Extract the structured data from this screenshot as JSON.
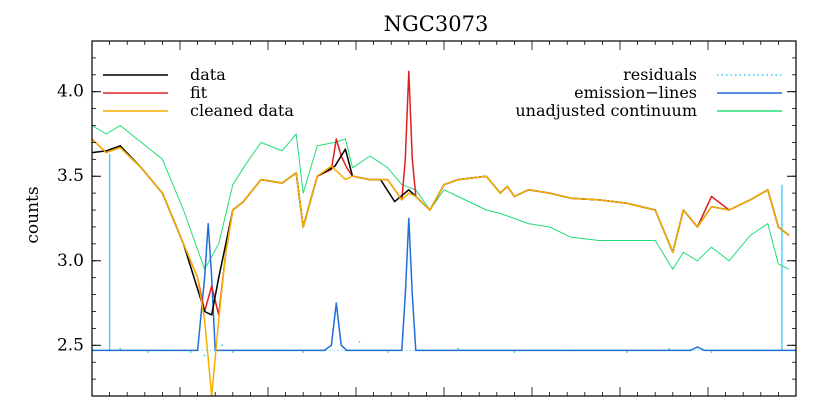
{
  "chart_data": {
    "type": "line",
    "title": "NGC3073",
    "xlabel": "",
    "ylabel": "counts",
    "ylim": [
      2.2,
      4.3
    ],
    "xlim": [
      0,
      1000
    ],
    "y_ticks": [
      2.5,
      3.0,
      3.5,
      4.0
    ],
    "y_tick_labels": [
      "2.5",
      "3.0",
      "3.5",
      "4.0"
    ],
    "x_ticks_major_count": 8,
    "grid": false,
    "legend_left": [
      {
        "name": "data",
        "color": "#000000",
        "style": "solid"
      },
      {
        "name": "fit",
        "color": "#e02020",
        "style": "solid"
      },
      {
        "name": "cleaned data",
        "color": "#f5b000",
        "style": "solid"
      }
    ],
    "legend_right": [
      {
        "name": "residuals",
        "color": "#33ccff",
        "style": "dotted"
      },
      {
        "name": "emission−lines",
        "color": "#1f6fd8",
        "style": "solid"
      },
      {
        "name": "unadjusted continuum",
        "color": "#22dd77",
        "style": "solid"
      }
    ],
    "series": [
      {
        "name": "data",
        "color": "#000000",
        "x": [
          0,
          20,
          40,
          70,
          100,
          130,
          160,
          170,
          180,
          190,
          200,
          215,
          240,
          270,
          290,
          300,
          320,
          345,
          360,
          370,
          395,
          410,
          430,
          450,
          460,
          480,
          500,
          520,
          560,
          580,
          590,
          600,
          620,
          650,
          680,
          720,
          760,
          800,
          825,
          840,
          860,
          880,
          905,
          935,
          960,
          975,
          990
        ],
        "values": [
          3.64,
          3.65,
          3.68,
          3.55,
          3.4,
          3.1,
          2.7,
          2.68,
          2.9,
          3.1,
          3.3,
          3.35,
          3.48,
          3.46,
          3.52,
          3.2,
          3.5,
          3.56,
          3.66,
          3.5,
          3.48,
          3.48,
          3.35,
          3.42,
          3.38,
          3.3,
          3.45,
          3.48,
          3.5,
          3.4,
          3.44,
          3.38,
          3.42,
          3.4,
          3.37,
          3.36,
          3.34,
          3.3,
          3.05,
          3.3,
          3.2,
          3.32,
          3.3,
          3.36,
          3.42,
          3.2,
          3.15
        ]
      },
      {
        "name": "fit",
        "color": "#e02020",
        "x": [
          0,
          20,
          40,
          70,
          100,
          130,
          150,
          160,
          170,
          180,
          190,
          200,
          215,
          240,
          270,
          290,
          300,
          320,
          340,
          347,
          354,
          362,
          370,
          395,
          420,
          440,
          445,
          450,
          455,
          460,
          480,
          500,
          520,
          560,
          580,
          590,
          600,
          620,
          650,
          680,
          720,
          760,
          800,
          825,
          840,
          860,
          880,
          905,
          935,
          960,
          975,
          990
        ],
        "values": [
          3.72,
          3.64,
          3.67,
          3.55,
          3.4,
          3.1,
          2.9,
          2.7,
          2.85,
          2.68,
          3.05,
          3.3,
          3.35,
          3.48,
          3.46,
          3.52,
          3.2,
          3.5,
          3.54,
          3.72,
          3.62,
          3.55,
          3.5,
          3.48,
          3.48,
          3.36,
          3.6,
          4.12,
          3.6,
          3.38,
          3.3,
          3.45,
          3.48,
          3.5,
          3.4,
          3.44,
          3.38,
          3.42,
          3.4,
          3.37,
          3.36,
          3.34,
          3.3,
          3.05,
          3.3,
          3.2,
          3.38,
          3.3,
          3.36,
          3.42,
          3.2,
          3.15
        ]
      },
      {
        "name": "cleaned data",
        "color": "#f5b000",
        "x": [
          0,
          20,
          40,
          70,
          100,
          130,
          150,
          160,
          170,
          180,
          190,
          200,
          215,
          240,
          270,
          290,
          300,
          320,
          340,
          360,
          370,
          395,
          420,
          440,
          450,
          460,
          480,
          500,
          520,
          560,
          580,
          590,
          600,
          620,
          650,
          680,
          720,
          760,
          800,
          825,
          840,
          860,
          880,
          905,
          935,
          960,
          975,
          990
        ],
        "values": [
          3.72,
          3.64,
          3.67,
          3.55,
          3.4,
          3.1,
          2.9,
          2.65,
          2.2,
          2.65,
          3.05,
          3.3,
          3.35,
          3.48,
          3.46,
          3.52,
          3.2,
          3.5,
          3.56,
          3.48,
          3.5,
          3.48,
          3.48,
          3.36,
          3.4,
          3.38,
          3.3,
          3.45,
          3.48,
          3.5,
          3.4,
          3.44,
          3.38,
          3.42,
          3.4,
          3.37,
          3.36,
          3.34,
          3.3,
          3.05,
          3.3,
          3.2,
          3.32,
          3.3,
          3.36,
          3.42,
          3.2,
          3.15
        ]
      },
      {
        "name": "unadjusted continuum",
        "color": "#22dd77",
        "x": [
          0,
          20,
          40,
          70,
          100,
          130,
          160,
          180,
          200,
          215,
          240,
          270,
          290,
          300,
          320,
          345,
          360,
          370,
          395,
          420,
          440,
          460,
          480,
          500,
          520,
          560,
          580,
          600,
          620,
          650,
          680,
          720,
          760,
          800,
          825,
          840,
          860,
          880,
          905,
          935,
          960,
          975,
          990
        ],
        "values": [
          3.8,
          3.75,
          3.8,
          3.7,
          3.6,
          3.3,
          2.95,
          3.1,
          3.45,
          3.55,
          3.7,
          3.65,
          3.75,
          3.4,
          3.68,
          3.7,
          3.72,
          3.55,
          3.62,
          3.55,
          3.45,
          3.42,
          3.3,
          3.42,
          3.38,
          3.3,
          3.28,
          3.25,
          3.22,
          3.2,
          3.14,
          3.12,
          3.12,
          3.12,
          2.95,
          3.05,
          3.0,
          3.08,
          3.0,
          3.15,
          3.22,
          2.98,
          2.95
        ]
      },
      {
        "name": "emission−lines",
        "color": "#1f6fd8",
        "x": [
          0,
          130,
          135,
          150,
          160,
          165,
          170,
          175,
          180,
          190,
          210,
          330,
          340,
          347,
          354,
          362,
          440,
          445,
          450,
          455,
          460,
          850,
          860,
          870,
          1000
        ],
        "values": [
          2.47,
          2.47,
          2.47,
          2.47,
          2.9,
          3.22,
          2.9,
          2.47,
          2.47,
          2.47,
          2.47,
          2.47,
          2.5,
          2.75,
          2.5,
          2.47,
          2.47,
          2.8,
          3.25,
          2.8,
          2.47,
          2.47,
          2.49,
          2.47,
          2.47
        ]
      },
      {
        "name": "residuals",
        "color": "#33ccff",
        "x": [
          25,
          40,
          80,
          100,
          140,
          160,
          185,
          200,
          260,
          300,
          360,
          380,
          420,
          470,
          520,
          600,
          680,
          760,
          820,
          880,
          940,
          975
        ],
        "values": [
          2.47,
          2.48,
          2.46,
          2.47,
          2.46,
          2.44,
          2.5,
          2.46,
          2.47,
          2.46,
          2.47,
          2.52,
          2.46,
          2.47,
          2.48,
          2.46,
          2.47,
          2.46,
          2.48,
          2.46,
          2.47,
          2.47
        ]
      }
    ],
    "edge_markers": [
      {
        "x": 25,
        "y_from": 2.47,
        "y_to": 3.63,
        "color": "#33ccff"
      },
      {
        "x": 980,
        "y_from": 2.47,
        "y_to": 3.45,
        "color": "#33ccff"
      }
    ]
  }
}
